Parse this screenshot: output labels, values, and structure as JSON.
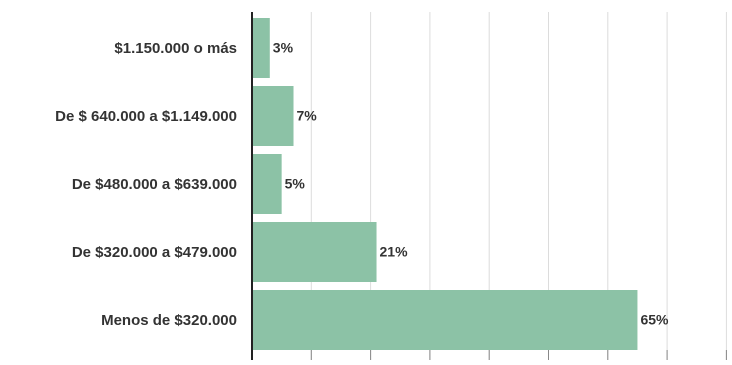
{
  "chart_data": {
    "type": "bar",
    "orientation": "horizontal",
    "categories": [
      "$1.150.000 o más",
      "De $ 640.000 a $1.149.000",
      "De $480.000 a $639.000",
      "De $320.000 a $479.000",
      "Menos de $320.000"
    ],
    "values": [
      3,
      7,
      5,
      21,
      65
    ],
    "value_labels": [
      "3%",
      "7%",
      "5%",
      "21%",
      "65%"
    ],
    "unit": "%",
    "xlim": [
      0,
      80
    ],
    "grid": true,
    "title": "",
    "xlabel": "",
    "ylabel": ""
  },
  "colors": {
    "bar": "#8cc2a6",
    "grid": "#dcdcdc",
    "axis": "#222222",
    "text": "#333333"
  }
}
